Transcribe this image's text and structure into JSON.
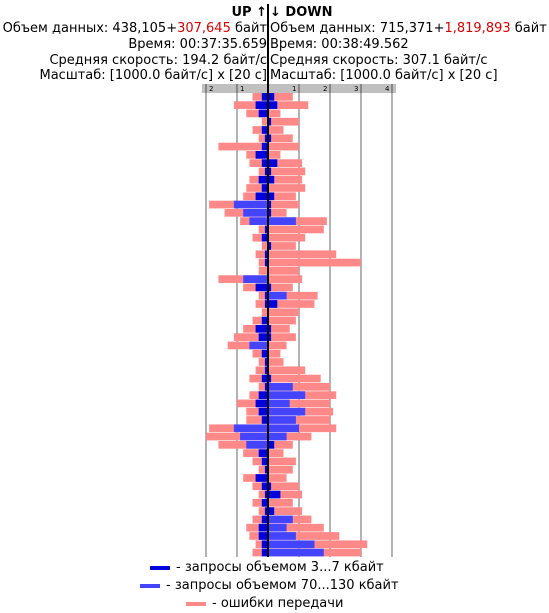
{
  "header": {
    "up_title": "UP ↑",
    "down_title": "↓ DOWN",
    "up_volume_label": "Объем данных: ",
    "up_volume_main": "438,105",
    "up_volume_plus": "+",
    "up_volume_err": "307,645",
    "up_volume_unit": " байт",
    "down_volume_label": "Объем данных: ",
    "down_volume_main": "715,371",
    "down_volume_plus": "+",
    "down_volume_err": "1,819,893",
    "down_volume_unit": " байт",
    "up_time": "Время: 00:37:35.659",
    "down_time": "Время: 00:38:49.562",
    "up_speed": "Средняя скорость: 194.2 байт/с",
    "down_speed": "Средняя скорость: 307.1 байт/с",
    "up_scale": "Масштаб: [1000.0 байт/с] x [20 с]",
    "down_scale": "Масштаб: [1000.0 байт/с] x [20 с]"
  },
  "colors": {
    "small_requests": "#0000dd",
    "large_requests": "#4444ff",
    "errors": "#ff8888",
    "axis_bar": "#c0c0c0",
    "center_line": "#000000"
  },
  "legend": [
    {
      "label": "- запросы объемом 3...7 кбайт",
      "color": "#0000dd"
    },
    {
      "label": "- запросы объемом 70...130 кбайт",
      "color": "#4444ff"
    },
    {
      "label": "- ошибки передачи",
      "color": "#ff8888"
    }
  ],
  "chart_data": {
    "type": "bar",
    "orientation": "horizontal-mirrored",
    "up_ticks": [
      "2",
      "1"
    ],
    "down_ticks": [
      "1",
      "2",
      "3",
      "4"
    ],
    "scale": "1000.0 байт/с per unit, 20 с per row",
    "grid": true,
    "rows": [
      {
        "up_err": 0.3,
        "up_req": 0.2,
        "down_err": 0.6,
        "down_req": 0.2
      },
      {
        "up_err": 0.7,
        "up_req": 0.4,
        "down_err": 1.0,
        "down_req": 0.3
      },
      {
        "up_err": 0.4,
        "up_req": 0.3,
        "down_err": 0.4,
        "down_req": 0.0
      },
      {
        "up_err": 0.2,
        "up_req": 0.0,
        "down_err": 0.9,
        "down_req": 0.1
      },
      {
        "up_err": 0.3,
        "up_req": 0.2,
        "down_err": 0.5,
        "down_req": 0.0
      },
      {
        "up_err": 0.2,
        "up_req": 0.1,
        "down_err": 0.7,
        "down_req": 0.1
      },
      {
        "up_err": 1.4,
        "up_req": 0.2,
        "down_err": 1.0,
        "down_req": 0.0
      },
      {
        "up_err": 0.3,
        "up_req": 0.4,
        "down_err": 0.4,
        "down_req": 0.0
      },
      {
        "up_err": 0.4,
        "up_req": 0.2,
        "down_err": 0.8,
        "down_req": 0.3
      },
      {
        "up_err": 0.2,
        "up_req": 0.1,
        "down_err": 1.1,
        "down_req": 0.1
      },
      {
        "up_err": 0.3,
        "up_req": 0.3,
        "down_err": 0.9,
        "down_req": 0.2
      },
      {
        "up_err": 0.5,
        "up_req": 0.2,
        "down_err": 1.2,
        "down_req": 0.0
      },
      {
        "up_err": 0.4,
        "up_req": 0.4,
        "down_err": 0.7,
        "down_req": 0.2
      },
      {
        "up_err": 0.8,
        "up_req": 1.1,
        "down_err": 0.9,
        "down_req": 0.1
      },
      {
        "up_err": 0.6,
        "up_req": 0.8,
        "down_err": 0.5,
        "down_req": 0.1
      },
      {
        "up_err": 0.3,
        "up_req": 0.6,
        "down_err": 1.0,
        "down_req": 0.9
      },
      {
        "up_err": 0.2,
        "up_req": 0.1,
        "down_err": 1.8,
        "down_req": 0.0
      },
      {
        "up_err": 0.3,
        "up_req": 0.2,
        "down_err": 1.2,
        "down_req": 0.0
      },
      {
        "up_err": 0.2,
        "up_req": 0.0,
        "down_err": 0.8,
        "down_req": 0.1
      },
      {
        "up_err": 0.3,
        "up_req": 0.1,
        "down_err": 2.2,
        "down_req": 0.0
      },
      {
        "up_err": 0.2,
        "up_req": 0.1,
        "down_err": 3.0,
        "down_req": 0.0
      },
      {
        "up_err": 0.3,
        "up_req": 0.0,
        "down_err": 1.0,
        "down_req": 0.0
      },
      {
        "up_err": 0.8,
        "up_req": 0.8,
        "down_err": 1.1,
        "down_req": 0.0
      },
      {
        "up_err": 0.4,
        "up_req": 0.4,
        "down_err": 0.7,
        "down_req": 0.1
      },
      {
        "up_err": 0.2,
        "up_req": 0.1,
        "down_err": 1.0,
        "down_req": 0.6
      },
      {
        "up_err": 0.3,
        "up_req": 0.1,
        "down_err": 1.2,
        "down_req": 0.3
      },
      {
        "up_err": 0.2,
        "up_req": 0.0,
        "down_err": 1.0,
        "down_req": 0.0
      },
      {
        "up_err": 0.3,
        "up_req": 0.2,
        "down_err": 0.9,
        "down_req": 0.0
      },
      {
        "up_err": 0.4,
        "up_req": 0.4,
        "down_err": 0.6,
        "down_req": 0.1
      },
      {
        "up_err": 0.8,
        "up_req": 0.3,
        "down_err": 0.8,
        "down_req": 0.1
      },
      {
        "up_err": 0.7,
        "up_req": 0.6,
        "down_err": 0.6,
        "down_req": 0.0
      },
      {
        "up_err": 0.3,
        "up_req": 0.2,
        "down_err": 0.4,
        "down_req": 0.0
      },
      {
        "up_err": 0.2,
        "up_req": 0.1,
        "down_err": 0.5,
        "down_req": 0.0
      },
      {
        "up_err": 0.3,
        "up_req": 0.1,
        "down_err": 1.2,
        "down_req": 0.0
      },
      {
        "up_err": 0.4,
        "up_req": 0.2,
        "down_err": 1.6,
        "down_req": 0.1
      },
      {
        "up_err": 0.2,
        "up_req": 0.1,
        "down_err": 1.2,
        "down_req": 0.8
      },
      {
        "up_err": 0.3,
        "up_req": 0.3,
        "down_err": 1.0,
        "down_req": 1.2
      },
      {
        "up_err": 0.6,
        "up_req": 0.4,
        "down_err": 1.3,
        "down_req": 0.7
      },
      {
        "up_err": 0.4,
        "up_req": 0.3,
        "down_err": 0.9,
        "down_req": 1.2
      },
      {
        "up_err": 0.5,
        "up_req": 0.2,
        "down_err": 1.1,
        "down_req": 0.9
      },
      {
        "up_err": 0.8,
        "up_req": 1.1,
        "down_err": 1.2,
        "down_req": 1.0
      },
      {
        "up_err": 1.1,
        "up_req": 0.9,
        "down_err": 0.8,
        "down_req": 0.6
      },
      {
        "up_err": 0.9,
        "up_req": 0.7,
        "down_err": 0.6,
        "down_req": 0.2
      },
      {
        "up_err": 0.5,
        "up_req": 0.3,
        "down_err": 0.5,
        "down_req": 0.0
      },
      {
        "up_err": 0.3,
        "up_req": 0.2,
        "down_err": 0.9,
        "down_req": 0.0
      },
      {
        "up_err": 0.2,
        "up_req": 0.1,
        "down_err": 0.8,
        "down_req": 0.0
      },
      {
        "up_err": 0.4,
        "up_req": 0.4,
        "down_err": 0.6,
        "down_req": 0.0
      },
      {
        "up_err": 0.3,
        "up_req": 0.2,
        "down_err": 0.9,
        "down_req": 0.1
      },
      {
        "up_err": 0.2,
        "up_req": 0.1,
        "down_err": 0.7,
        "down_req": 0.4
      },
      {
        "up_err": 0.3,
        "up_req": 0.2,
        "down_err": 0.8,
        "down_req": 0.0
      },
      {
        "up_err": 0.2,
        "up_req": 0.1,
        "down_err": 0.9,
        "down_req": 0.2
      },
      {
        "up_err": 0.3,
        "up_req": 0.2,
        "down_err": 0.6,
        "down_req": 0.8
      },
      {
        "up_err": 0.4,
        "up_req": 0.3,
        "down_err": 1.2,
        "down_req": 0.6
      },
      {
        "up_err": 0.3,
        "up_req": 0.3,
        "down_err": 1.4,
        "down_req": 0.9
      },
      {
        "up_err": 0.2,
        "up_req": 0.2,
        "down_err": 1.7,
        "down_req": 1.5
      },
      {
        "up_err": 0.3,
        "up_req": 0.2,
        "down_err": 1.2,
        "down_req": 1.8
      }
    ]
  }
}
